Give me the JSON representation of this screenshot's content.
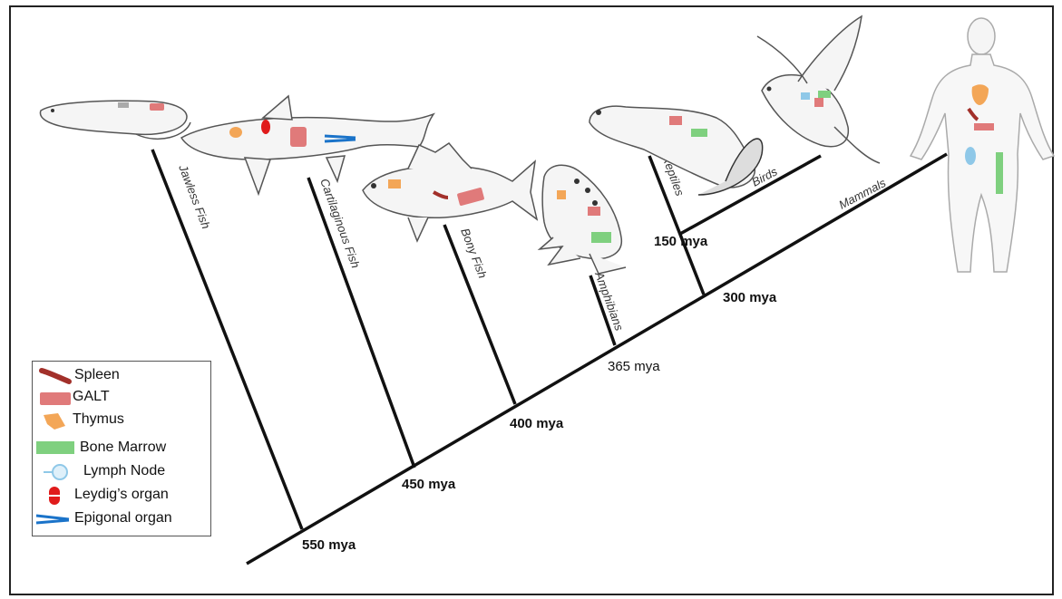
{
  "tree": {
    "clades": [
      {
        "id": "jawless-fish",
        "label": "Jawless Fish"
      },
      {
        "id": "cartilaginous-fish",
        "label": "Cartilaginous Fish"
      },
      {
        "id": "bony-fish",
        "label": "Bony Fish"
      },
      {
        "id": "amphibians",
        "label": "Amphibians"
      },
      {
        "id": "reptiles",
        "label": "Reptiles"
      },
      {
        "id": "birds",
        "label": "Birds"
      },
      {
        "id": "mammals",
        "label": "Mammals"
      }
    ],
    "divergences": [
      {
        "id": "550",
        "label": "550 mya"
      },
      {
        "id": "450",
        "label": "450 mya"
      },
      {
        "id": "400",
        "label": "400 mya"
      },
      {
        "id": "365",
        "label": "365 mya"
      },
      {
        "id": "300",
        "label": "300 mya"
      },
      {
        "id": "150",
        "label": "150 mya"
      }
    ]
  },
  "legend": {
    "items": [
      {
        "label": "Spleen",
        "icon": "spleen-icon",
        "color": "#a2302a"
      },
      {
        "label": "GALT",
        "icon": "galt-icon",
        "color": "#e07a7a"
      },
      {
        "label": "Thymus",
        "icon": "thymus-icon",
        "color": "#f3a657"
      },
      {
        "label": "Bone Marrow",
        "icon": "bone-marrow-icon",
        "color": "#7fd07f"
      },
      {
        "label": "Lymph Node",
        "icon": "lymph-node-icon",
        "color": "#8fc8e8"
      },
      {
        "label": "Leydig’s organ",
        "icon": "leydig-organ-icon",
        "color": "#e01b1b"
      },
      {
        "label": "Epigonal organ",
        "icon": "epigonal-organ-icon",
        "color": "#1a73c9"
      }
    ]
  },
  "colors": {
    "line": "#111111",
    "outline": "#333333"
  }
}
